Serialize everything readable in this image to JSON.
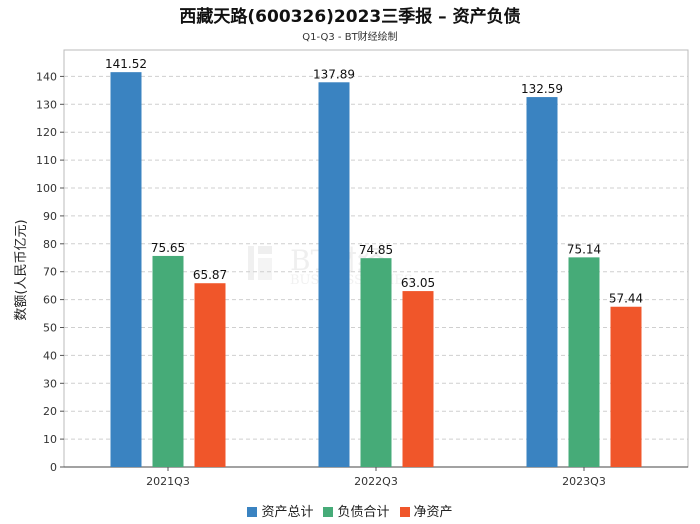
{
  "chart_data": {
    "type": "bar",
    "title": "西藏天路(600326)2023三季报 – 资产负债",
    "subtitle": "Q1-Q3 - BT财经绘制",
    "xlabel": "",
    "ylabel": "数额(人民币亿元)",
    "ylim": [
      0,
      150
    ],
    "yticks": [
      0,
      10,
      20,
      30,
      40,
      50,
      60,
      70,
      80,
      90,
      100,
      110,
      120,
      130,
      140
    ],
    "categories": [
      "2021Q3",
      "2022Q3",
      "2023Q3"
    ],
    "series": [
      {
        "name": "资产总计",
        "color": "#3a83c1",
        "values": [
          141.52,
          137.89,
          132.59
        ],
        "labels": [
          "141.52",
          "137.89",
          "132.59"
        ]
      },
      {
        "name": "负债合计",
        "color": "#46ab78",
        "values": [
          75.65,
          74.85,
          75.14
        ],
        "labels": [
          "75.65",
          "74.85",
          "75.14"
        ]
      },
      {
        "name": "净资产",
        "color": "#f0562a",
        "values": [
          65.87,
          63.05,
          57.44
        ],
        "labels": [
          "65.87",
          "63.05",
          "57.44"
        ]
      }
    ],
    "grid": true,
    "legend_position": "bottom-center"
  },
  "watermark": {
    "text": "BT财经 BUSINESS TIMES",
    "color": "#e6e6e6"
  }
}
